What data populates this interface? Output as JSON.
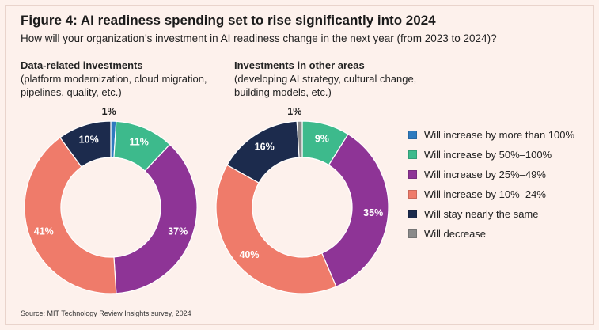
{
  "title": "Figure 4: AI readiness spending set to rise significantly into 2024",
  "subtitle": "How will your organization’s investment in AI readiness change in the next year (from 2023 to 2024)?",
  "source": "Source: MIT Technology Review Insights survey, 2024",
  "colors": {
    "background": "#fdf1ec",
    "series": [
      "#2e7bbf",
      "#3dba8c",
      "#8e3496",
      "#ef7b6a",
      "#1c2b4d",
      "#8a8a8a"
    ],
    "label_dark_text": "#1f1f1f",
    "label_light_text": "#ffffff"
  },
  "legend": [
    "Will increase by more than 100%",
    "Will increase by 50%–100%",
    "Will increase by 25%–49%",
    "Will increase by 10%–24%",
    "Will stay nearly the same",
    "Will decrease"
  ],
  "chart_data": [
    {
      "type": "pie",
      "variant": "donut",
      "title": "Data-related investments",
      "description": "(platform modernization, cloud migration, pipelines, quality, etc.)",
      "categories": [
        "Will increase by more than 100%",
        "Will increase by 50%–100%",
        "Will increase by 25%–49%",
        "Will increase by 10%–24%",
        "Will stay nearly the same",
        "Will decrease"
      ],
      "values": [
        1,
        11,
        37,
        41,
        10,
        0
      ],
      "labels": [
        "1%",
        "11%",
        "37%",
        "41%",
        "10%",
        ""
      ]
    },
    {
      "type": "pie",
      "variant": "donut",
      "title": "Investments in other areas",
      "description": "(developing AI strategy, cultural change, building models, etc.)",
      "categories": [
        "Will increase by more than 100%",
        "Will increase by 50%–100%",
        "Will increase by 25%–49%",
        "Will increase by 10%–24%",
        "Will stay nearly the same",
        "Will decrease"
      ],
      "values": [
        0,
        9,
        35,
        40,
        16,
        1
      ],
      "labels": [
        "",
        "9%",
        "35%",
        "40%",
        "16%",
        "1%"
      ]
    }
  ]
}
